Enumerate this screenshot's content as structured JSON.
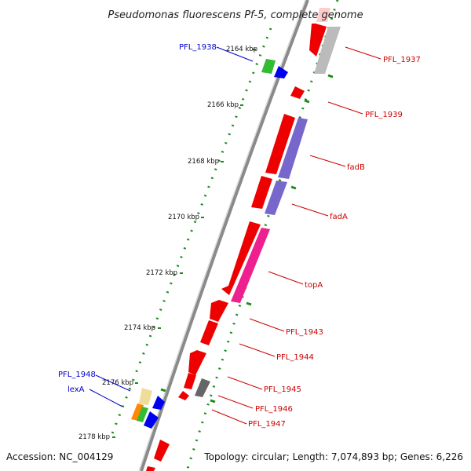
{
  "title": "Pseudomonas fluorescens Pf-5, complete genome",
  "accession": "Accession: NC_004129",
  "summary": "Topology: circular; Length: 7,074,893 bp; Genes: 6,226",
  "colors": {
    "backbone": "#8a8a8a",
    "forward_label": "#0000cc",
    "reverse_label": "#cc0000",
    "ticks": "#1a8c1a",
    "red": "#ee0000",
    "gray": "#bbbbbb",
    "purple": "#7766cc",
    "pink": "#ee1f8e",
    "blue": "#0000ee",
    "green": "#33bb33",
    "yellow": "#eedd99",
    "orange": "#ff8800",
    "darkgray": "#666666",
    "pale_red": "#ffcccc"
  },
  "kbp_ticks": [
    "2164 kbp",
    "2166 kbp",
    "2168 kbp",
    "2170 kbp",
    "2172 kbp",
    "2174 kbp",
    "2176 kbp",
    "2178 kbp"
  ],
  "forward_gene_labels": [
    "PFL_1938",
    "PFL_1948",
    "lexA"
  ],
  "reverse_gene_labels": [
    "PFL_1937",
    "PFL_1939",
    "fadB",
    "fadA",
    "topA",
    "PFL_1943",
    "PFL_1944",
    "PFL_1945",
    "PFL_1946",
    "PFL_1947"
  ]
}
